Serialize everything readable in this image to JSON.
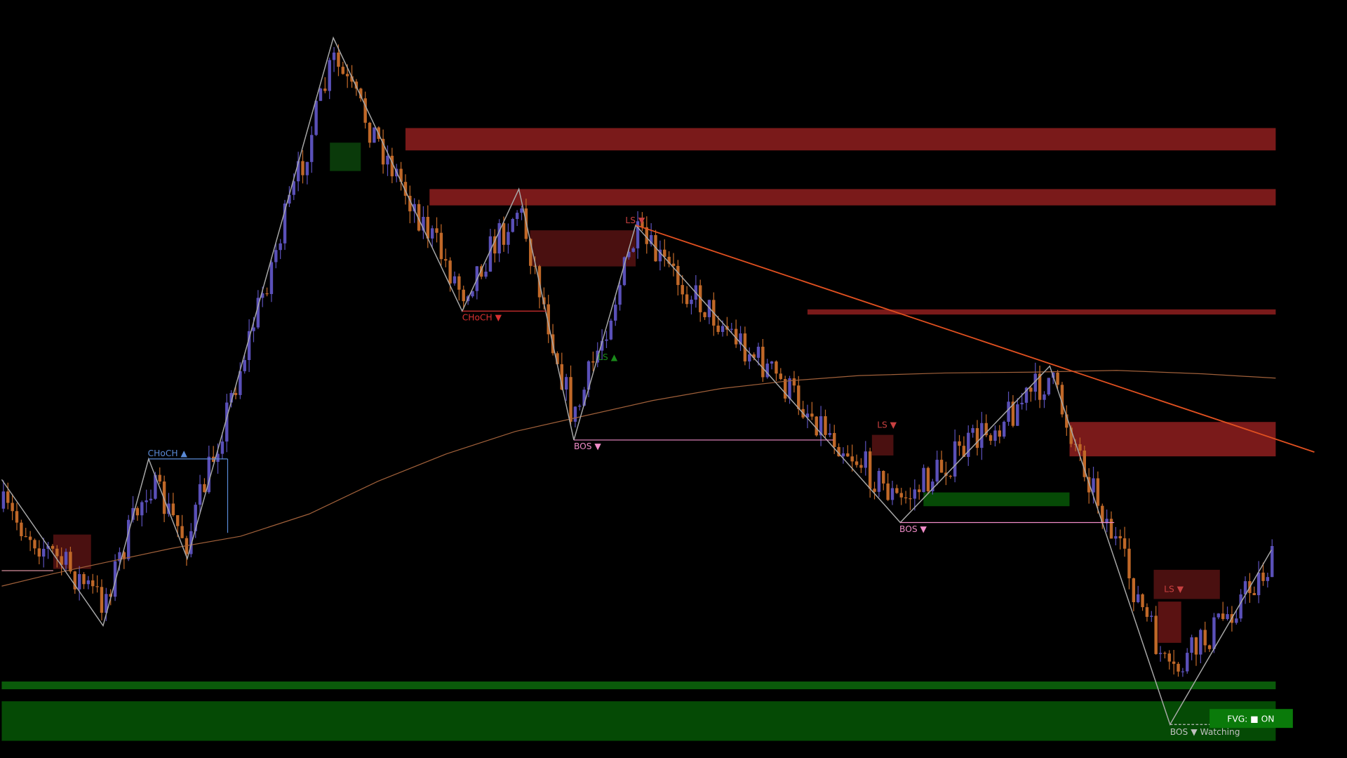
{
  "annotations": [
    {
      "text": "CHoCH ▲",
      "color": "#5a8ad6"
    },
    {
      "text": "CHoCH ▼",
      "color": "#d83030"
    },
    {
      "text": "BOS ▼",
      "color": "#f08cc8"
    },
    {
      "text": "LS ▼",
      "color": "#c84040"
    },
    {
      "text": "LS ▲",
      "color": "#1a8a1a"
    },
    {
      "text": "LS ▼",
      "color": "#c84040"
    },
    {
      "text": "BOS ▼",
      "color": "#f08cc8"
    },
    {
      "text": "LS ▼",
      "color": "#c84040"
    },
    {
      "text": "BOS ▼ Watching",
      "color": "#c0c0c0"
    }
  ],
  "fvg_toggle": "FVG: ■ ON"
}
